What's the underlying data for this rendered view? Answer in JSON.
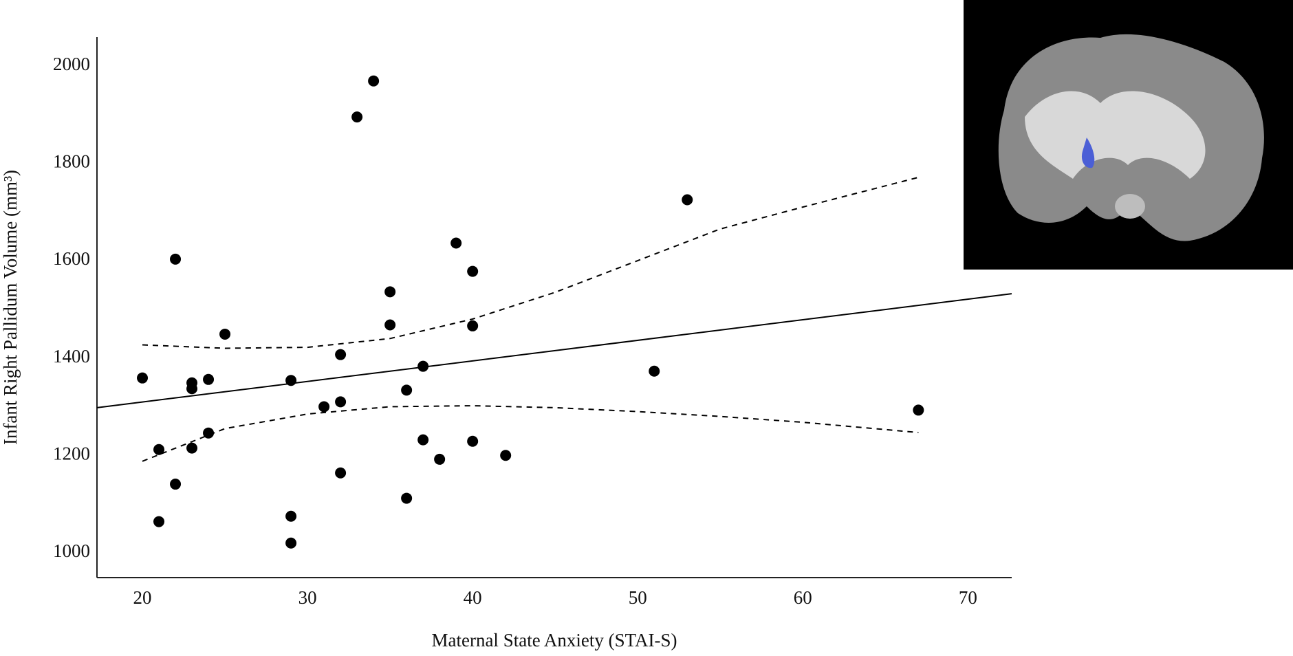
{
  "chart_data": {
    "type": "scatter",
    "xlabel": "Maternal State Anxiety (STAI-S)",
    "ylabel": "Infant Right Pallidum Volume (mm³)",
    "xlim": [
      17.25,
      72.65
    ],
    "ylim": [
      949,
      2059
    ],
    "xticks": [
      20,
      30,
      40,
      50,
      60,
      70
    ],
    "yticks": [
      1000,
      1200,
      1400,
      1600,
      1800,
      2000
    ],
    "color": "#000000",
    "x": [
      20,
      21,
      21,
      22,
      22,
      23,
      23,
      23,
      24,
      24,
      25,
      29,
      29,
      29,
      31,
      32,
      32,
      32,
      33,
      34,
      35,
      35,
      36,
      36,
      37,
      37,
      38,
      39,
      40,
      40,
      40,
      42,
      51,
      53,
      67
    ],
    "y": [
      1359,
      1212,
      1064,
      1603,
      1141,
      1349,
      1337,
      1215,
      1356,
      1246,
      1449,
      1354,
      1075,
      1020,
      1300,
      1407,
      1310,
      1164,
      1895,
      1969,
      1536,
      1468,
      1334,
      1112,
      1383,
      1232,
      1192,
      1636,
      1578,
      1466,
      1229,
      1200,
      1373,
      1725,
      1293
    ],
    "fit": {
      "x": [
        17.25,
        72.65
      ],
      "y": [
        1298,
        1532
      ]
    },
    "ci_upper": {
      "x": [
        20,
        25,
        30,
        35,
        40,
        45,
        50,
        55,
        60,
        67
      ],
      "y": [
        1427,
        1420,
        1422,
        1440,
        1480,
        1535,
        1600,
        1665,
        1710,
        1771
      ]
    },
    "ci_lower": {
      "x": [
        20,
        25,
        30,
        35,
        40,
        45,
        50,
        55,
        60,
        67
      ],
      "y": [
        1188,
        1255,
        1285,
        1300,
        1302,
        1298,
        1290,
        1280,
        1268,
        1247
      ]
    }
  }
}
